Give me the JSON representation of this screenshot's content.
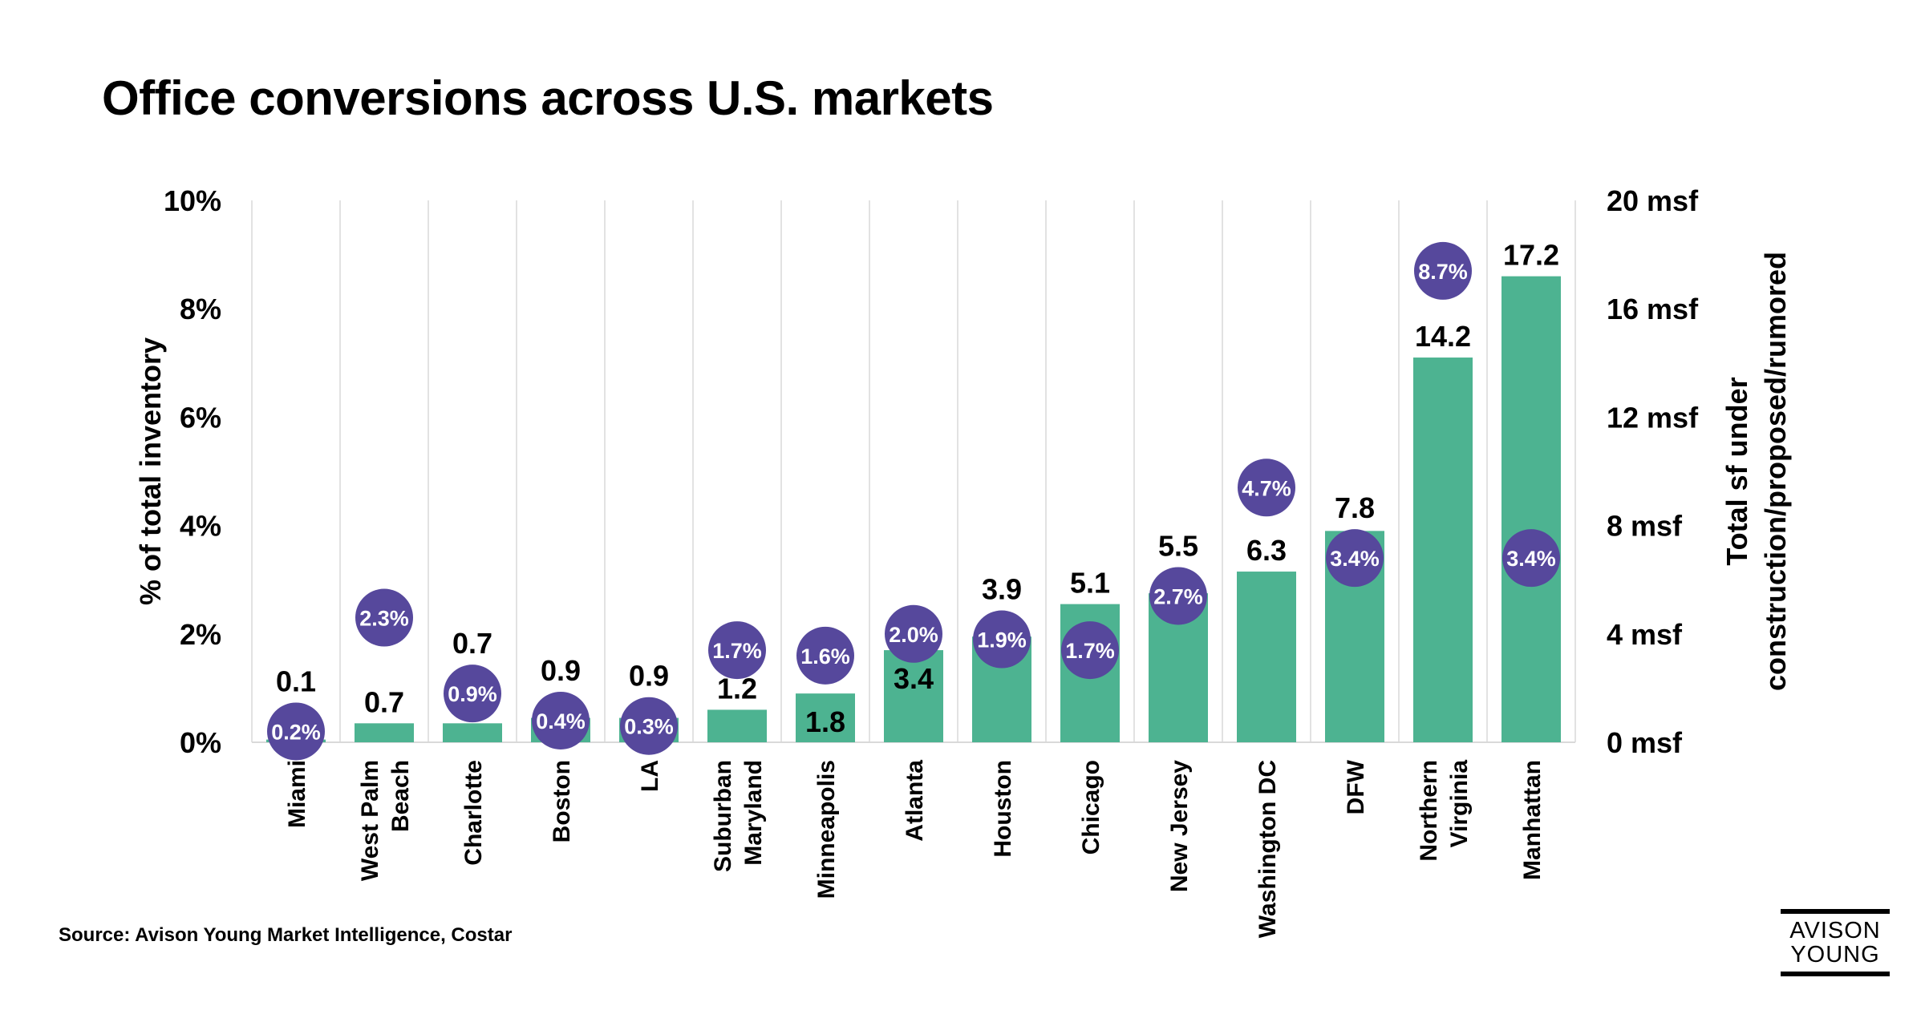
{
  "title": "Office conversions across U.S. markets",
  "source": "Source: Avison Young Market Intelligence, Costar",
  "logo": {
    "line1": "AVISON",
    "line2": "YOUNG"
  },
  "chart_data": {
    "type": "bar",
    "title": "Office conversions across U.S. markets",
    "categories": [
      [
        "Miami"
      ],
      [
        "West Palm",
        "Beach"
      ],
      [
        "Charlotte"
      ],
      [
        "Boston"
      ],
      [
        "LA"
      ],
      [
        "Suburban",
        "Maryland"
      ],
      [
        "Minneapolis"
      ],
      [
        "Atlanta"
      ],
      [
        "Houston"
      ],
      [
        "Chicago"
      ],
      [
        "New Jersey"
      ],
      [
        "Washington DC"
      ],
      [
        "DFW"
      ],
      [
        "Northern",
        "Virginia"
      ],
      [
        "Manhattan"
      ]
    ],
    "series": [
      {
        "kind": "bar",
        "axis": "right",
        "color": "#4DB391",
        "values": [
          0.1,
          0.7,
          0.7,
          0.9,
          0.9,
          1.2,
          1.8,
          3.4,
          3.9,
          5.1,
          5.5,
          6.3,
          7.8,
          14.2,
          17.2
        ],
        "labels": [
          "0.1",
          "0.7",
          "0.7",
          "0.9",
          "0.9",
          "1.2",
          "1.8",
          "3.4",
          "3.9",
          "5.1",
          "5.5",
          "6.3",
          "7.8",
          "14.2",
          "17.2"
        ]
      },
      {
        "kind": "dot",
        "axis": "left",
        "color": "#56489C",
        "values": [
          0.2,
          2.3,
          0.9,
          0.4,
          0.3,
          1.7,
          1.6,
          2.0,
          1.9,
          1.7,
          2.7,
          4.7,
          3.4,
          8.7,
          3.4
        ],
        "labels": [
          "0.2%",
          "2.3%",
          "0.9%",
          "0.4%",
          "0.3%",
          "1.7%",
          "1.6%",
          "2.0%",
          "1.9%",
          "1.7%",
          "2.7%",
          "4.7%",
          "3.4%",
          "8.7%",
          "3.4%"
        ]
      }
    ],
    "y_left": {
      "label": "% of total inventory",
      "range": [
        0,
        10
      ],
      "ticks": [
        "0%",
        "2%",
        "4%",
        "6%",
        "8%",
        "10%"
      ]
    },
    "y_right": {
      "label": [
        "Total sf under",
        "construction/proposed/rumored"
      ],
      "range": [
        0,
        20
      ],
      "ticks": [
        "0 msf",
        "4 msf",
        "8 msf",
        "12 msf",
        "16 msf",
        "20 msf"
      ]
    },
    "grid": "vertical category separators",
    "legend": "none"
  }
}
